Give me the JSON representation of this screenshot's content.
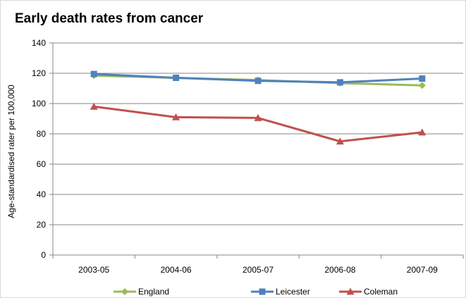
{
  "chart_data": {
    "type": "line",
    "title": "Early death rates from cancer",
    "xlabel": "",
    "ylabel": "Age-standardised rater per 100,000",
    "categories": [
      "2003-05",
      "2004-06",
      "2005-07",
      "2006-08",
      "2007-09"
    ],
    "ylim": [
      0,
      140
    ],
    "yticks": [
      0,
      20,
      40,
      60,
      80,
      100,
      120,
      140
    ],
    "grid": true,
    "legend_position": "bottom",
    "series": [
      {
        "name": "England",
        "values": [
          118.5,
          117,
          115.5,
          113.5,
          112
        ],
        "color": "#9bbb59",
        "marker": "diamond"
      },
      {
        "name": "Leicester",
        "values": [
          119.5,
          117,
          115,
          114,
          116.5
        ],
        "color": "#4f81bd",
        "marker": "square"
      },
      {
        "name": "Coleman",
        "values": [
          98,
          91,
          90.5,
          75,
          81
        ],
        "color": "#c0504d",
        "marker": "triangle"
      }
    ]
  }
}
